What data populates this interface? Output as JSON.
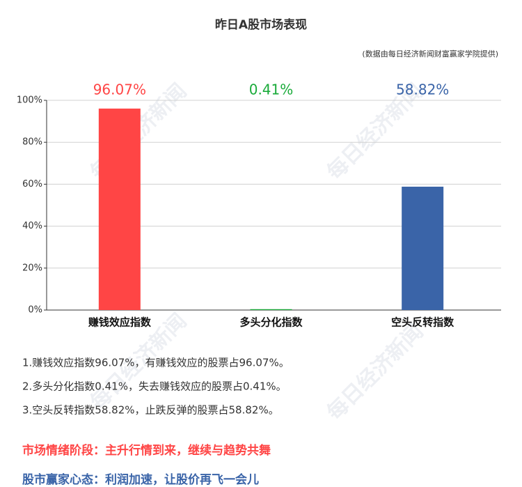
{
  "chart_data": {
    "type": "bar",
    "title": "昨日A股市场表现",
    "subtitle": "(数据由每日经济新闻财富赢家学院提供)",
    "categories": [
      "赚钱效应指数",
      "多头分化指数",
      "空头反转指数"
    ],
    "values": [
      96.07,
      0.41,
      58.82
    ],
    "value_labels": [
      "96.07%",
      "0.41%",
      "58.82%"
    ],
    "colors": [
      "#ff4545",
      "#1aab3a",
      "#3a64a8"
    ],
    "ylim": [
      0,
      100
    ],
    "yticks": [
      {
        "value": 0,
        "label": "0%"
      },
      {
        "value": 20,
        "label": "20%"
      },
      {
        "value": 40,
        "label": "40%"
      },
      {
        "value": 60,
        "label": "60%"
      },
      {
        "value": 80,
        "label": "80%"
      },
      {
        "value": 100,
        "label": "100%"
      }
    ],
    "grid": true
  },
  "watermark": "每日经济新闻",
  "notes": [
    "1.赚钱效应指数96.07%，有赚钱效应的股票占96.07%。",
    "2.多头分化指数0.41%，失去赚钱效应的股票占0.41%。",
    "3.空头反转指数58.82%，止跌反弹的股票占58.82%。"
  ],
  "stage": "市场情绪阶段：主升行情到来，继续与趋势共舞",
  "mindset": "股市赢家心态：利润加速，让股价再飞一会儿"
}
